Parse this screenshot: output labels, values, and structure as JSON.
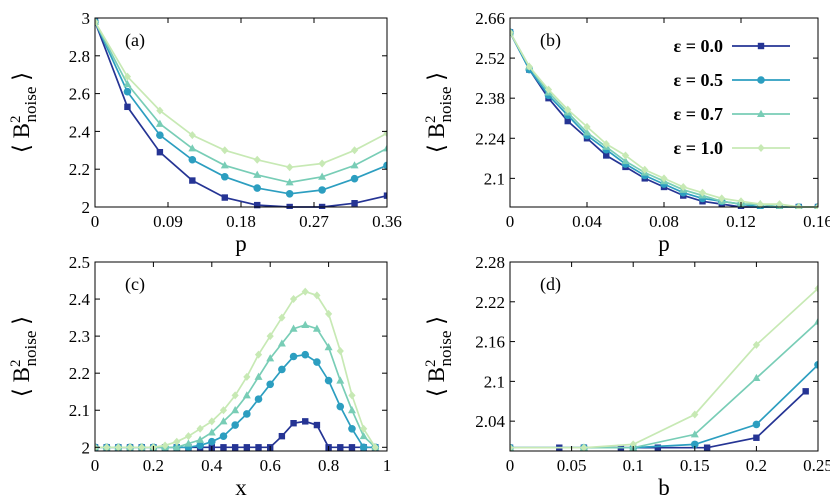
{
  "colors": [
    "#253494",
    "#2c9ec0",
    "#78cdb6",
    "#c7e9b4"
  ],
  "markers": [
    "square",
    "circle",
    "triangle",
    "diamond"
  ],
  "chart_data": [
    {
      "type": "line",
      "panel": "(a)",
      "xlabel": "p",
      "ylabel": {
        "base": "B",
        "sup": "2",
        "sub": "noise"
      },
      "xlim": [
        0,
        0.36
      ],
      "ylim": [
        2,
        3
      ],
      "xticks": [
        "0",
        "0.09",
        "0.18",
        "0.27",
        "0.36"
      ],
      "yticks": [
        "2",
        "2.2",
        "2.4",
        "2.6",
        "2.8",
        "3"
      ],
      "series": [
        {
          "name": "ε = 0.0",
          "x": [
            0,
            0.04,
            0.08,
            0.12,
            0.16,
            0.2,
            0.24,
            0.28,
            0.32,
            0.36
          ],
          "y": [
            2.98,
            2.53,
            2.29,
            2.14,
            2.05,
            2.01,
            2.0,
            2.0,
            2.02,
            2.06
          ]
        },
        {
          "name": "ε = 0.5",
          "x": [
            0,
            0.04,
            0.08,
            0.12,
            0.16,
            0.2,
            0.24,
            0.28,
            0.32,
            0.36
          ],
          "y": [
            2.98,
            2.61,
            2.38,
            2.25,
            2.16,
            2.1,
            2.07,
            2.09,
            2.15,
            2.22
          ]
        },
        {
          "name": "ε = 0.7",
          "x": [
            0,
            0.04,
            0.08,
            0.12,
            0.16,
            0.2,
            0.24,
            0.28,
            0.32,
            0.36
          ],
          "y": [
            2.98,
            2.65,
            2.44,
            2.31,
            2.22,
            2.17,
            2.13,
            2.16,
            2.22,
            2.31
          ]
        },
        {
          "name": "ε = 1.0",
          "x": [
            0,
            0.04,
            0.08,
            0.12,
            0.16,
            0.2,
            0.24,
            0.28,
            0.32,
            0.36
          ],
          "y": [
            2.98,
            2.69,
            2.51,
            2.38,
            2.3,
            2.25,
            2.21,
            2.23,
            2.3,
            2.39
          ]
        }
      ]
    },
    {
      "type": "line",
      "panel": "(b)",
      "xlabel": "p",
      "ylabel": {
        "base": "B",
        "sup": "2",
        "sub": "noise"
      },
      "xlim": [
        0,
        0.16
      ],
      "ylim": [
        2.0,
        2.66
      ],
      "xticks": [
        "0",
        "0.04",
        "0.08",
        "0.12",
        "0.16"
      ],
      "yticks": [
        "2.1",
        "2.24",
        "2.38",
        "2.52",
        "2.66"
      ],
      "series": [
        {
          "name": "ε = 0.0",
          "x": [
            0,
            0.01,
            0.02,
            0.03,
            0.04,
            0.05,
            0.06,
            0.07,
            0.08,
            0.09,
            0.1,
            0.11,
            0.12,
            0.13,
            0.14,
            0.15,
            0.16
          ],
          "y": [
            2.61,
            2.48,
            2.38,
            2.3,
            2.24,
            2.18,
            2.14,
            2.1,
            2.07,
            2.04,
            2.02,
            2.01,
            2.0,
            2.0,
            2.0,
            2.0,
            2.0
          ]
        },
        {
          "name": "ε = 0.5",
          "x": [
            0,
            0.01,
            0.02,
            0.03,
            0.04,
            0.05,
            0.06,
            0.07,
            0.08,
            0.09,
            0.1,
            0.11,
            0.12,
            0.13,
            0.14,
            0.15,
            0.16
          ],
          "y": [
            2.61,
            2.48,
            2.39,
            2.32,
            2.25,
            2.2,
            2.15,
            2.11,
            2.08,
            2.05,
            2.03,
            2.02,
            2.01,
            2.0,
            2.0,
            2.0,
            2.0
          ]
        },
        {
          "name": "ε = 0.7",
          "x": [
            0,
            0.01,
            0.02,
            0.03,
            0.04,
            0.05,
            0.06,
            0.07,
            0.08,
            0.09,
            0.1,
            0.11,
            0.12,
            0.13,
            0.14,
            0.15,
            0.16
          ],
          "y": [
            2.61,
            2.49,
            2.4,
            2.33,
            2.26,
            2.21,
            2.16,
            2.12,
            2.09,
            2.06,
            2.04,
            2.02,
            2.01,
            2.01,
            2.0,
            2.0,
            2.0
          ]
        },
        {
          "name": "ε = 1.0",
          "x": [
            0,
            0.01,
            0.02,
            0.03,
            0.04,
            0.05,
            0.06,
            0.07,
            0.08,
            0.09,
            0.1,
            0.11,
            0.12,
            0.13,
            0.14,
            0.15,
            0.16
          ],
          "y": [
            2.61,
            2.49,
            2.41,
            2.34,
            2.28,
            2.22,
            2.18,
            2.13,
            2.1,
            2.07,
            2.05,
            2.03,
            2.02,
            2.01,
            2.01,
            2.0,
            2.0
          ]
        }
      ]
    },
    {
      "type": "line",
      "panel": "(c)",
      "xlabel": "x",
      "ylabel": {
        "base": "B",
        "sup": "2",
        "sub": "noise"
      },
      "xlim": [
        0,
        1
      ],
      "ylim": [
        1.99,
        2.5
      ],
      "xticks": [
        "0",
        "0.2",
        "0.4",
        "0.6",
        "0.8",
        "1"
      ],
      "yticks": [
        "2",
        "2.1",
        "2.2",
        "2.3",
        "2.4",
        "2.5"
      ],
      "series": [
        {
          "name": "ε = 0.0",
          "x": [
            0,
            0.04,
            0.08,
            0.12,
            0.16,
            0.2,
            0.24,
            0.28,
            0.32,
            0.36,
            0.4,
            0.44,
            0.48,
            0.52,
            0.56,
            0.6,
            0.64,
            0.68,
            0.72,
            0.76,
            0.8,
            0.84,
            0.88,
            0.92,
            0.96
          ],
          "y": [
            2.0,
            2.0,
            2.0,
            2.0,
            2.0,
            2.0,
            2.0,
            2.0,
            2.0,
            2.0,
            2.0,
            2.0,
            2.0,
            2.0,
            2.0,
            2.0,
            2.03,
            2.065,
            2.07,
            2.06,
            2.0,
            2.0,
            2.0,
            2.0,
            2.0
          ]
        },
        {
          "name": "ε = 0.5",
          "x": [
            0,
            0.04,
            0.08,
            0.12,
            0.16,
            0.2,
            0.24,
            0.28,
            0.32,
            0.36,
            0.4,
            0.44,
            0.48,
            0.52,
            0.56,
            0.6,
            0.64,
            0.68,
            0.72,
            0.76,
            0.8,
            0.84,
            0.88,
            0.92,
            0.96
          ],
          "y": [
            2.0,
            2.0,
            2.0,
            2.0,
            2.0,
            2.0,
            2.0,
            2.0,
            2.0,
            2.005,
            2.015,
            2.03,
            2.06,
            2.09,
            2.13,
            2.17,
            2.21,
            2.245,
            2.25,
            2.23,
            2.18,
            2.11,
            2.05,
            2.0,
            2.0
          ]
        },
        {
          "name": "ε = 0.7",
          "x": [
            0,
            0.04,
            0.08,
            0.12,
            0.16,
            0.2,
            0.24,
            0.28,
            0.32,
            0.36,
            0.4,
            0.44,
            0.48,
            0.52,
            0.56,
            0.6,
            0.64,
            0.68,
            0.72,
            0.76,
            0.8,
            0.84,
            0.88,
            0.92,
            0.96
          ],
          "y": [
            2.0,
            2.0,
            2.0,
            2.0,
            2.0,
            2.0,
            2.0,
            2.0,
            2.01,
            2.02,
            2.04,
            2.07,
            2.1,
            2.14,
            2.19,
            2.24,
            2.28,
            2.32,
            2.33,
            2.32,
            2.27,
            2.18,
            2.1,
            2.03,
            2.0
          ]
        },
        {
          "name": "ε = 1.0",
          "x": [
            0,
            0.04,
            0.08,
            0.12,
            0.16,
            0.2,
            0.24,
            0.28,
            0.32,
            0.36,
            0.4,
            0.44,
            0.48,
            0.52,
            0.56,
            0.6,
            0.64,
            0.68,
            0.72,
            0.76,
            0.8,
            0.84,
            0.88,
            0.92,
            0.96
          ],
          "y": [
            2.0,
            2.0,
            2.0,
            2.0,
            2.0,
            2.0,
            2.005,
            2.015,
            2.03,
            2.05,
            2.07,
            2.1,
            2.14,
            2.19,
            2.25,
            2.3,
            2.35,
            2.4,
            2.42,
            2.41,
            2.36,
            2.26,
            2.14,
            2.05,
            2.0
          ]
        }
      ]
    },
    {
      "type": "line",
      "panel": "(d)",
      "xlabel": "b",
      "ylabel": {
        "base": "B",
        "sup": "2",
        "sub": "noise"
      },
      "xlim": [
        0,
        0.25
      ],
      "ylim": [
        1.995,
        2.28
      ],
      "xticks": [
        "0",
        "0.05",
        "0.1",
        "0.15",
        "0.2",
        "0.25"
      ],
      "yticks": [
        "2.04",
        "2.1",
        "2.16",
        "2.22",
        "2.28"
      ],
      "series": [
        {
          "name": "ε = 0.0",
          "x": [
            0,
            0.04,
            0.06,
            0.09,
            0.12,
            0.16,
            0.2,
            0.24
          ],
          "y": [
            2.0,
            2.0,
            2.0,
            2.0,
            2.0,
            2.0,
            2.015,
            2.085
          ]
        },
        {
          "name": "ε = 0.5",
          "x": [
            0,
            0.06,
            0.1,
            0.15,
            0.2,
            0.25
          ],
          "y": [
            2.0,
            2.0,
            2.0,
            2.005,
            2.035,
            2.125
          ]
        },
        {
          "name": "ε = 0.7",
          "x": [
            0,
            0.06,
            0.1,
            0.15,
            0.2,
            0.25
          ],
          "y": [
            2.0,
            2.0,
            2.0,
            2.02,
            2.105,
            2.19
          ]
        },
        {
          "name": "ε = 1.0",
          "x": [
            0,
            0.06,
            0.1,
            0.15,
            0.2,
            0.25
          ],
          "y": [
            2.0,
            2.0,
            2.005,
            2.05,
            2.155,
            2.24
          ]
        }
      ]
    }
  ],
  "legend": {
    "panel": "(b)",
    "placement": "top-right",
    "entries": [
      "ε = 0.0",
      "ε = 0.5",
      "ε = 0.7",
      "ε = 1.0"
    ]
  }
}
